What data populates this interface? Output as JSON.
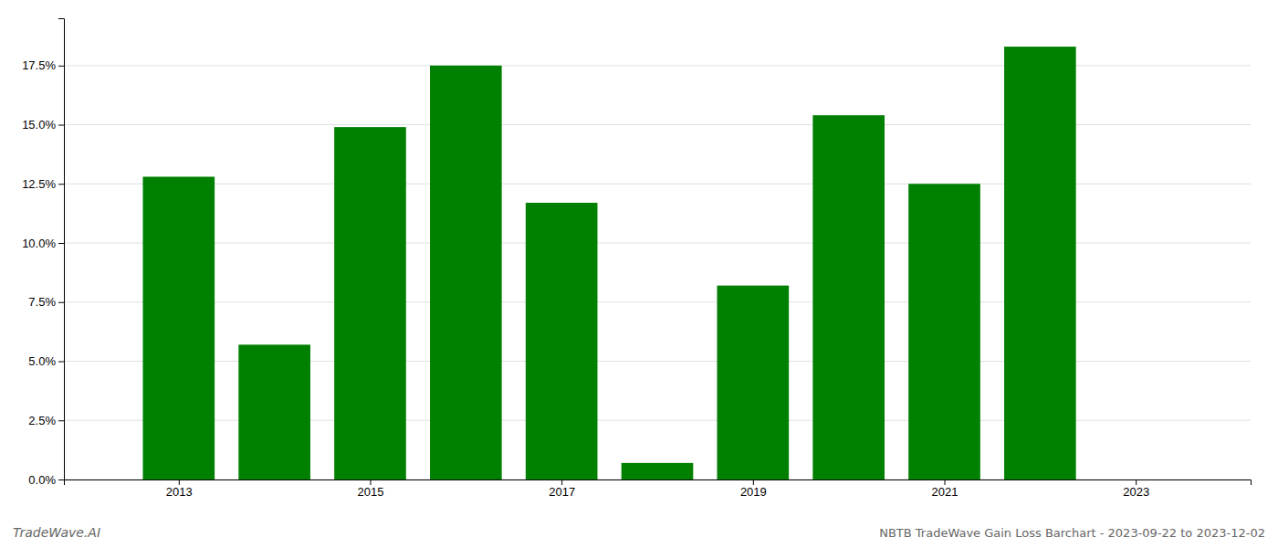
{
  "chart_data": {
    "type": "bar",
    "x": [
      2013,
      2014,
      2015,
      2016,
      2017,
      2018,
      2019,
      2020,
      2021,
      2022
    ],
    "values": [
      0.128,
      0.057,
      0.149,
      0.175,
      0.117,
      0.007,
      0.082,
      0.154,
      0.125,
      0.183
    ],
    "color": "#008000",
    "xlim": [
      2011.8,
      2024.2
    ],
    "xticks": [
      2013,
      2015,
      2017,
      2019,
      2021,
      2023
    ],
    "ylim": [
      0,
      0.195
    ],
    "yticks": [
      {
        "value": 0.0,
        "label": "0.0%"
      },
      {
        "value": 0.025,
        "label": "2.5%"
      },
      {
        "value": 0.05,
        "label": "5.0%"
      },
      {
        "value": 0.075,
        "label": "7.5%"
      },
      {
        "value": 0.1,
        "label": "10.0%"
      },
      {
        "value": 0.125,
        "label": "12.5%"
      },
      {
        "value": 0.15,
        "label": "15.0%"
      },
      {
        "value": 0.175,
        "label": "17.5%"
      }
    ],
    "grid": true,
    "annotations": [
      "TradeWave.AI",
      "NBTB TradeWave Gain Loss Barchart - 2023-09-22 to 2023-12-02"
    ]
  }
}
